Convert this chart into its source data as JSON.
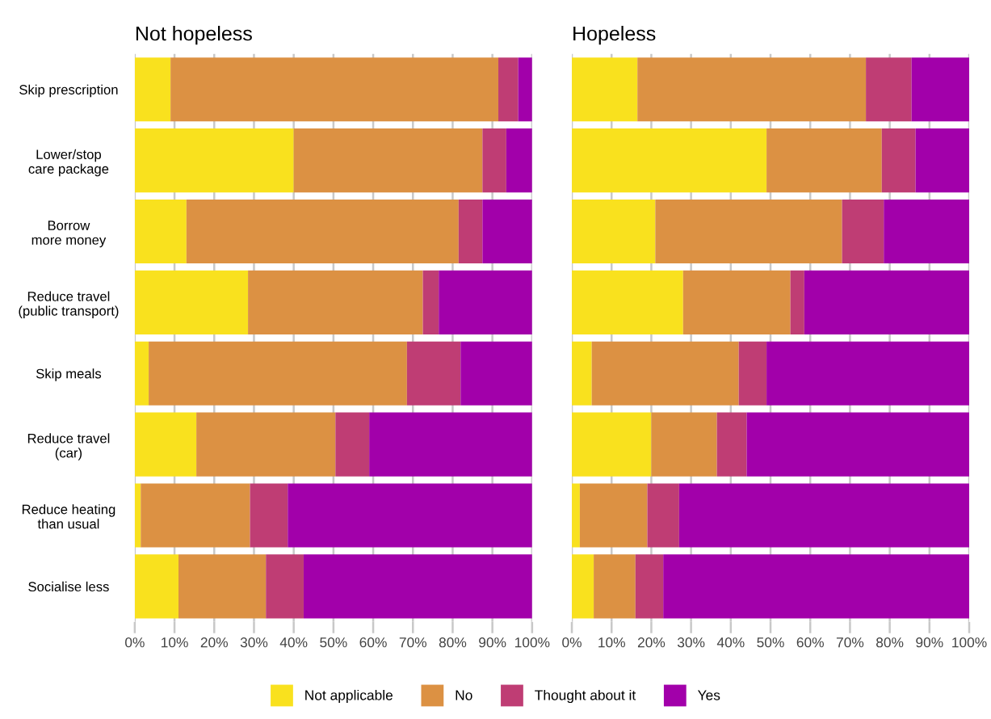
{
  "chart_data": [
    {
      "type": "bar",
      "orientation": "horizontal",
      "stacked": true,
      "title": "Not hopeless",
      "categories": [
        "Skip prescription",
        "Lower/stop\ncare package",
        "Borrow\nmore money",
        "Reduce travel\n(public transport)",
        "Skip meals",
        "Reduce travel\n(car)",
        "Reduce heating\nthan usual",
        "Socialise less"
      ],
      "series": [
        {
          "name": "Not applicable",
          "color": "#f9e11e",
          "values": [
            9,
            40,
            13,
            28.5,
            3.5,
            15.5,
            1.5,
            11
          ]
        },
        {
          "name": "No",
          "color": "#dc9143",
          "values": [
            82.5,
            47.5,
            68.5,
            44,
            65,
            35,
            27.5,
            22
          ]
        },
        {
          "name": "Thought about it",
          "color": "#bf3d74",
          "values": [
            5,
            6,
            6,
            4,
            13.5,
            8.5,
            9.5,
            9.5
          ]
        },
        {
          "name": "Yes",
          "color": "#a200aa",
          "values": [
            3.5,
            6.5,
            12.5,
            23.5,
            18,
            41,
            61.5,
            57.5
          ]
        }
      ],
      "xlim": [
        0,
        100
      ],
      "xticks": [
        {
          "value": 0,
          "label": "0%"
        },
        {
          "value": 10,
          "label": "10%"
        },
        {
          "value": 20,
          "label": "20%"
        },
        {
          "value": 30,
          "label": "30%"
        },
        {
          "value": 40,
          "label": "40%"
        },
        {
          "value": 50,
          "label": "50%"
        },
        {
          "value": 60,
          "label": "60%"
        },
        {
          "value": 70,
          "label": "70%"
        },
        {
          "value": 80,
          "label": "80%"
        },
        {
          "value": 90,
          "label": "90%"
        },
        {
          "value": 100,
          "label": "100%"
        }
      ],
      "grid": "x",
      "legend": "bottom"
    },
    {
      "type": "bar",
      "orientation": "horizontal",
      "stacked": true,
      "title": "Hopeless",
      "categories": [
        null,
        null,
        null,
        null,
        null,
        null,
        null,
        null
      ],
      "series": [
        {
          "color": "#f9e11e",
          "values": [
            16.5,
            49,
            21,
            28,
            5,
            20,
            2,
            5.5
          ]
        },
        {
          "color": "#dc9143",
          "values": [
            57.5,
            29,
            47,
            27,
            37,
            16.5,
            17,
            10.5
          ]
        },
        {
          "color": "#bf3d74",
          "values": [
            11.5,
            8.5,
            10.5,
            3.5,
            7,
            7.5,
            8,
            7
          ]
        },
        {
          "color": "#a200aa",
          "values": [
            14.5,
            13.5,
            21.5,
            41.5,
            51,
            56,
            73,
            77
          ]
        }
      ],
      "xlim": [
        0,
        100
      ],
      "xticks": [
        {
          "value": 0,
          "label": "0%"
        },
        {
          "value": 10,
          "label": "10%"
        },
        {
          "value": 20,
          "label": "20%"
        },
        {
          "value": 30,
          "label": "30%"
        },
        {
          "value": 40,
          "label": "40%"
        },
        {
          "value": 50,
          "label": "50%"
        },
        {
          "value": 60,
          "label": "60%"
        },
        {
          "value": 70,
          "label": "70%"
        },
        {
          "value": 80,
          "label": "80%"
        },
        {
          "value": 90,
          "label": "90%"
        },
        {
          "value": 100,
          "label": "100%"
        }
      ],
      "grid": "x",
      "tick_labels": "x"
    }
  ]
}
